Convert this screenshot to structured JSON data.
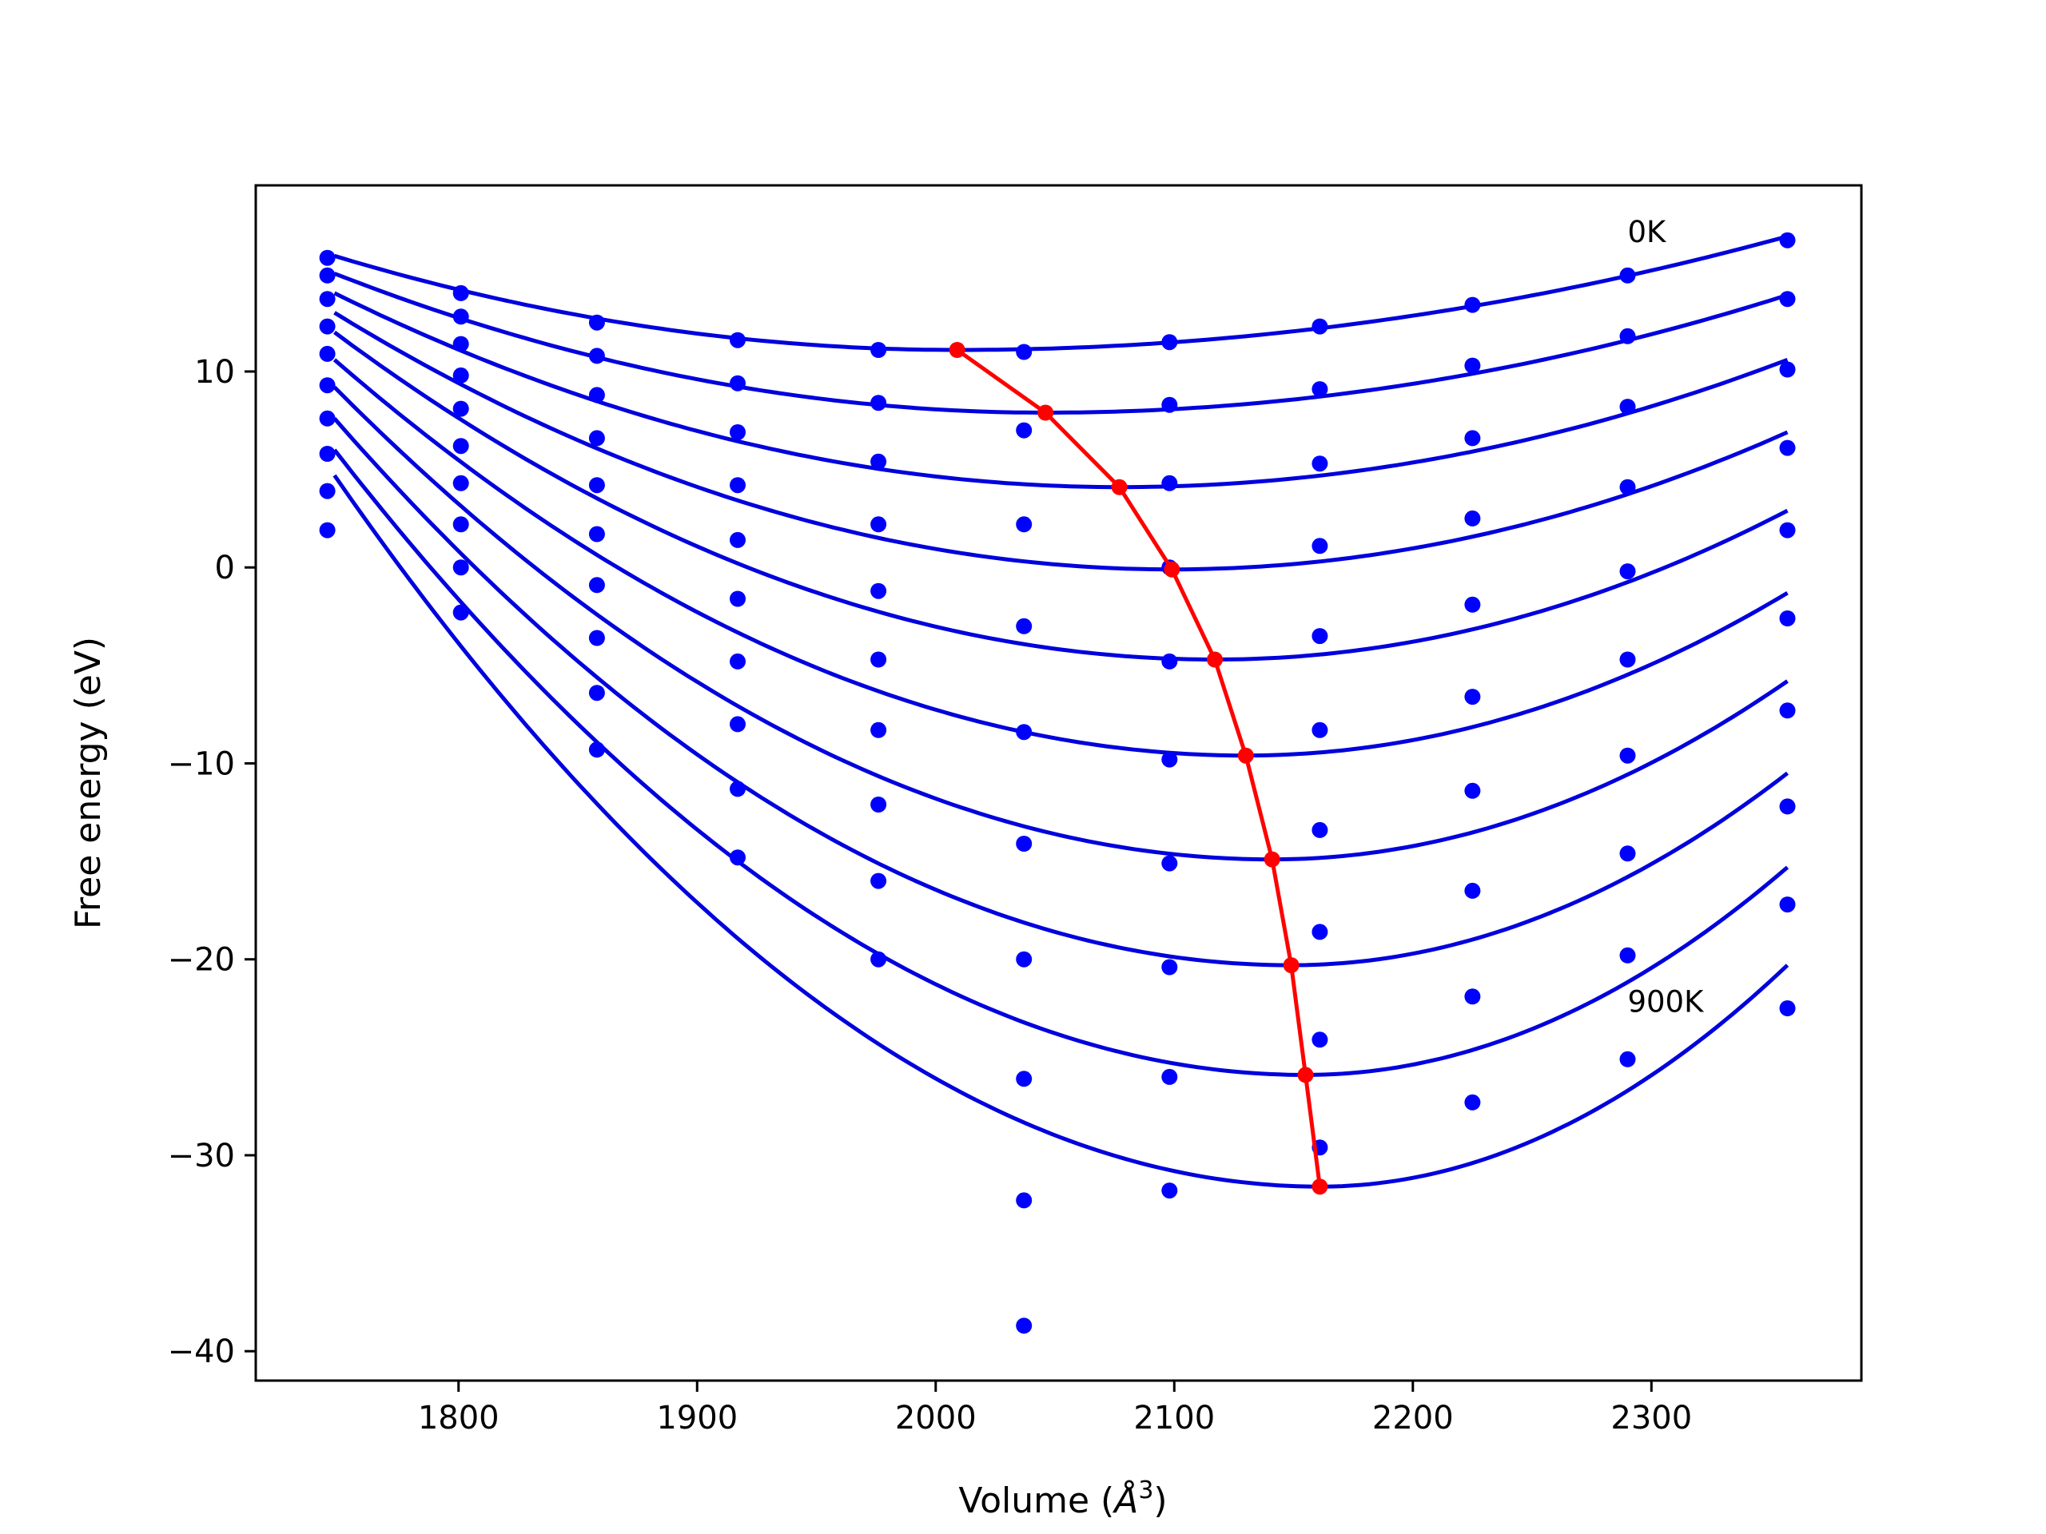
{
  "chart_data": {
    "type": "scatter",
    "title": "",
    "xlabel": "Volume (",
    "xlabel_symbol": "Å",
    "xlabel_sup": "3",
    "xlabel_end": ")",
    "ylabel": "Free energy (eV)",
    "xlim": [
      1715,
      2388
    ],
    "ylim": [
      -41.5,
      19.5
    ],
    "xticks": [
      {
        "value": 1800,
        "label": "1800"
      },
      {
        "value": 1900,
        "label": "1900"
      },
      {
        "value": 2000,
        "label": "2000"
      },
      {
        "value": 2100,
        "label": "2100"
      },
      {
        "value": 2200,
        "label": "2200"
      },
      {
        "value": 2300,
        "label": "2300"
      }
    ],
    "yticks": [
      {
        "value": 10,
        "label": "10"
      },
      {
        "value": 0,
        "label": "0"
      },
      {
        "value": -10,
        "label": "−10"
      },
      {
        "value": -20,
        "label": "−20"
      },
      {
        "value": -30,
        "label": "−30"
      },
      {
        "value": -40,
        "label": "−40"
      }
    ],
    "grid": false,
    "volumes": [
      1745,
      1801,
      1858,
      1917,
      1976,
      2037,
      2098,
      2161,
      2225,
      2290,
      2357
    ],
    "point_sets": [
      [
        15.8,
        14.0,
        12.5,
        11.6,
        11.1,
        11.0,
        11.5,
        12.3,
        13.4,
        14.9,
        16.7
      ],
      [
        14.9,
        12.8,
        10.8,
        9.4,
        8.4,
        7.0,
        8.3,
        9.1,
        10.3,
        11.8,
        13.7
      ],
      [
        13.7,
        11.4,
        8.8,
        6.9,
        5.4,
        2.2,
        4.3,
        5.3,
        6.6,
        8.2,
        10.1
      ],
      [
        12.3,
        9.8,
        6.6,
        4.2,
        2.2,
        -3.0,
        0.0,
        1.1,
        2.5,
        4.1,
        6.1
      ],
      [
        10.9,
        8.1,
        4.2,
        1.4,
        -1.2,
        -8.4,
        -4.8,
        -3.5,
        -1.9,
        -0.2,
        1.9
      ],
      [
        9.3,
        6.2,
        1.7,
        -1.6,
        -4.7,
        -14.1,
        -9.8,
        -8.3,
        -6.6,
        -4.7,
        -2.6
      ],
      [
        7.6,
        4.3,
        -0.9,
        -4.8,
        -8.3,
        -20.0,
        -15.1,
        -13.4,
        -11.4,
        -9.6,
        -7.3
      ],
      [
        5.8,
        2.2,
        -3.6,
        -8.0,
        -12.1,
        -26.1,
        -20.4,
        -18.6,
        -16.5,
        -14.6,
        -12.2
      ],
      [
        3.9,
        0.0,
        -6.4,
        -11.3,
        -16.0,
        -32.3,
        -26.0,
        -24.1,
        -21.9,
        -19.8,
        -17.2
      ],
      [
        1.9,
        -2.3,
        -9.3,
        -14.8,
        -20.0,
        -38.7,
        -31.8,
        -29.6,
        -27.3,
        -25.1,
        -22.5
      ]
    ],
    "fit_curves": [
      {
        "vmin": 2009,
        "fmin": 11.1,
        "left": 15.9,
        "right": 16.9
      },
      {
        "vmin": 2046,
        "fmin": 7.9,
        "left": 15.0,
        "right": 13.9
      },
      {
        "vmin": 2077,
        "fmin": 4.1,
        "left": 14.0,
        "right": 10.6
      },
      {
        "vmin": 2099,
        "fmin": -0.1,
        "left": 13.0,
        "right": 6.9
      },
      {
        "vmin": 2117,
        "fmin": -4.7,
        "left": 12.0,
        "right": 2.9
      },
      {
        "vmin": 2130,
        "fmin": -9.6,
        "left": 10.6,
        "right": -1.3
      },
      {
        "vmin": 2141,
        "fmin": -14.9,
        "left": 9.2,
        "right": -5.8
      },
      {
        "vmin": 2149,
        "fmin": -20.3,
        "left": 7.6,
        "right": -10.5
      },
      {
        "vmin": 2155,
        "fmin": -25.9,
        "left": 6.0,
        "right": -15.3
      },
      {
        "vmin": 2161,
        "fmin": -31.6,
        "left": 4.7,
        "right": -20.3
      }
    ],
    "fit_x_range": [
      1748,
      2357
    ],
    "minimum_line": {
      "x": [
        2009,
        2046,
        2077,
        2099,
        2117,
        2130,
        2141,
        2149,
        2155,
        2161
      ],
      "y": [
        11.1,
        7.9,
        4.1,
        -0.1,
        -4.7,
        -9.6,
        -14.9,
        -20.3,
        -25.9,
        -31.6
      ]
    },
    "annotations": [
      {
        "text": "0K",
        "x": 2290,
        "y": 17.1
      },
      {
        "text": "900K",
        "x": 2290,
        "y": -22.2
      }
    ],
    "colors": {
      "points": "#0000ff",
      "curves": "#0000dd",
      "minimum_line": "#ff0000",
      "axes": "#000000",
      "background": "#ffffff"
    }
  }
}
